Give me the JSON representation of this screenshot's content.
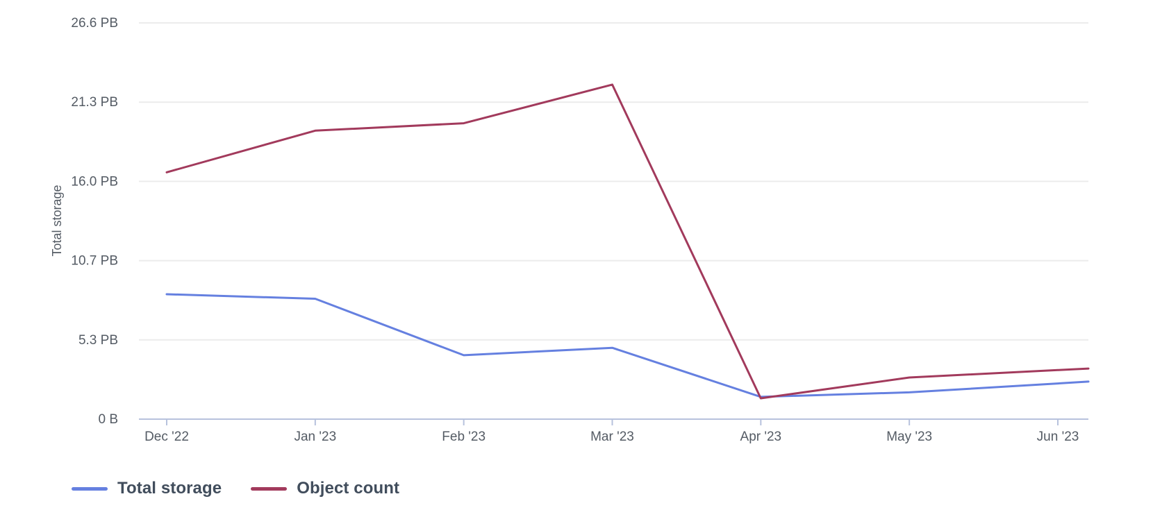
{
  "chart_data": {
    "type": "line",
    "title": "",
    "ylabel": "Total storage",
    "xlabel": "",
    "x_categories": [
      "Dec '22",
      "Jan '23",
      "Feb '23",
      "Mar '23",
      "Apr '23",
      "May '23",
      "Jun '23"
    ],
    "y_ticks": [
      {
        "label": "0 B",
        "value": 0
      },
      {
        "label": "5.3 PB",
        "value": 5.33
      },
      {
        "label": "10.7 PB",
        "value": 10.66
      },
      {
        "label": "16.0 PB",
        "value": 15.99
      },
      {
        "label": "21.3 PB",
        "value": 21.32
      },
      {
        "label": "26.6 PB",
        "value": 26.65
      }
    ],
    "ylim": [
      0,
      26.65
    ],
    "unit": "PB",
    "grid": true,
    "legend_position": "bottom",
    "line_extends_past_last_tick": true,
    "series": [
      {
        "name": "Total storage",
        "color": "#6580e0",
        "values_pb": [
          8.4,
          8.1,
          4.3,
          4.8,
          1.5,
          1.8,
          2.4
        ]
      },
      {
        "name": "Object count",
        "color": "#a23a5c",
        "values_pb": [
          16.6,
          19.4,
          19.9,
          22.5,
          1.4,
          2.8,
          3.3
        ]
      }
    ],
    "colors": {
      "grid_line": "#ececec",
      "axis_line": "#b7c2dd",
      "tick_label": "#545b64",
      "axis_title": "#545b64",
      "legend_text": "#414d5c"
    }
  }
}
